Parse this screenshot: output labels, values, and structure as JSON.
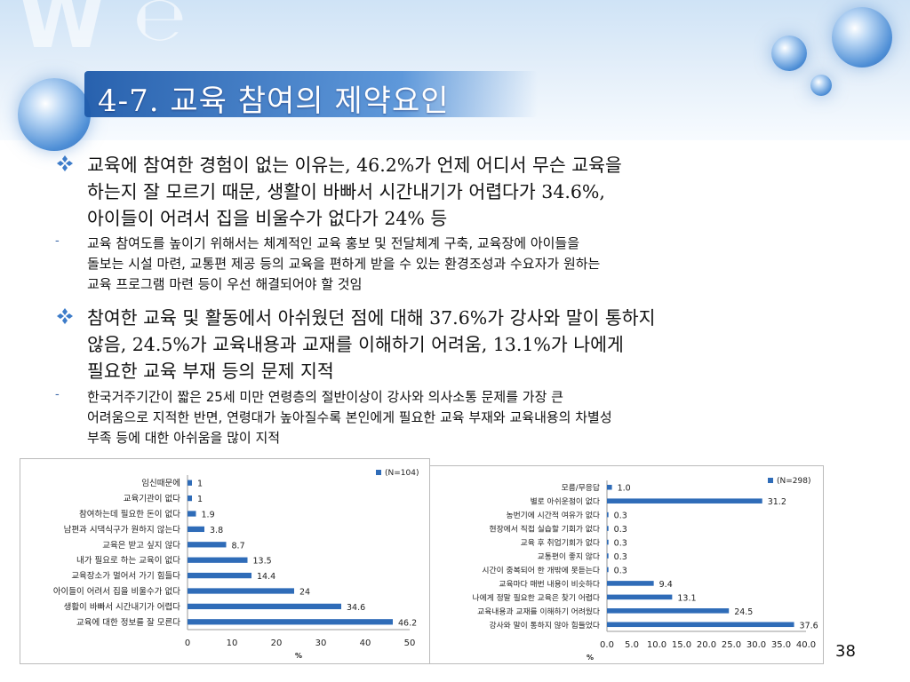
{
  "slide": {
    "title": "4-7. 교육 참여의 제약요인",
    "page_number": "38"
  },
  "bullets": [
    {
      "text": "교육에 참여한 경험이 없는 이유는, 46.2%가 언제 어디서 무슨 교육을 하는지 잘 모르기 때문, 생활이 바빠서 시간내기가 어렵다가 34.6%, 아이들이 어려서 집을 비울수가 없다가 24% 등",
      "lines": [
        "교육에 참여한 경험이 없는 이유는, 46.2%가 언제 어디서 무슨 교육을",
        "하는지 잘 모르기 때문, 생활이 바빠서 시간내기가 어렵다가 34.6%,",
        "아이들이 어려서 집을 비울수가 없다가 24% 등"
      ]
    },
    {
      "lines": [
        "참여한 교육 및 활동에서 아쉬웠던 점에 대해 37.6%가 강사와 말이 통하지",
        "않음, 24.5%가 교육내용과 교재를 이해하기 어려움, 13.1%가 나에게",
        "필요한 교육 부재 등의 문제 지적"
      ]
    }
  ],
  "subs": [
    {
      "dash": "-",
      "lines": [
        "교육 참여도를 높이기 위해서는 체계적인 교육 홍보 및 전달체계 구축, 교육장에 아이들을",
        "돌보는 시설 마련, 교통편 제공 등의 교육을 편하게 받을 수 있는 환경조성과 수요자가 원하는",
        "교육 프로그램 마련 등이 우선 해결되어야 할 것임"
      ]
    },
    {
      "dash": "-",
      "lines": [
        "한국거주기간이 짧은 25세 미만 연령층의 절반이상이 강사와 의사소통 문제를 가장 큰",
        "어려움으로 지적한 반면, 연령대가 높아질수록 본인에게 필요한 교육 부재와 교육내용의 차별성",
        "부족 등에 대한 아쉬움을 많이 지적"
      ]
    }
  ],
  "colors": {
    "bar": "#2f6cb8",
    "title_bar": "#1e5aaa",
    "bullet_mark": "#3d7cc9"
  },
  "chart_data": [
    {
      "type": "bar",
      "orientation": "horizontal",
      "legend": "(N=104)",
      "legend_position": "top-right",
      "xlabel": "%",
      "xlim": [
        0,
        50
      ],
      "xticks": [
        "0",
        "10",
        "20",
        "30",
        "40",
        "50"
      ],
      "categories": [
        "임신때문에",
        "교육기관이 없다",
        "참여하는데 필요한 돈이 없다",
        "남편과 시댁식구가 원하지 않는다",
        "교육은 받고 싶지 않다",
        "내가 필요로 하는 교육이 없다",
        "교육장소가 멀어서 가기 힘들다",
        "아이들이 어려서 집을 비울수가 없다",
        "생활이 바빠서 시간내기가 어렵다",
        "교육에 대한 정보를 잘 모른다"
      ],
      "values": [
        1,
        1,
        1.9,
        3.8,
        8.7,
        13.5,
        14.4,
        24,
        34.6,
        46.2
      ],
      "value_labels": [
        "1",
        "1",
        "1.9",
        "3.8",
        "8.7",
        "13.5",
        "14.4",
        "24",
        "34.6",
        "46.2"
      ]
    },
    {
      "type": "bar",
      "orientation": "horizontal",
      "legend": "(N=298)",
      "legend_position": "top-right",
      "xlabel": "%",
      "xlim": [
        0,
        40
      ],
      "xticks": [
        "0.0",
        "5.0",
        "10.0",
        "15.0",
        "20.0",
        "25.0",
        "30.0",
        "35.0",
        "40.0"
      ],
      "categories": [
        "모름/무응답",
        "별로 아쉬운점이 없다",
        "농번기에 시간적 여유가 없다",
        "현장에서 직접 실습할 기회가 없다",
        "교육 후 취업기회가 없다",
        "교통편이 좋지 않다",
        "시간이 중복되어 한 개밖에 못듣는다",
        "교육마다 매번 내용이 비슷하다",
        "나에게 정말 필요한 교육은 찾기 어렵다",
        "교육내용과 교재를 이해하기 어려웠다",
        "강사와 말이 통하지 않아 힘들었다"
      ],
      "values": [
        1.0,
        31.2,
        0.3,
        0.3,
        0.3,
        0.3,
        0.3,
        9.4,
        13.1,
        24.5,
        37.6
      ],
      "value_labels": [
        "1.0",
        "31.2",
        "0.3",
        "0.3",
        "0.3",
        "0.3",
        "0.3",
        "9.4",
        "13.1",
        "24.5",
        "37.6"
      ]
    }
  ]
}
